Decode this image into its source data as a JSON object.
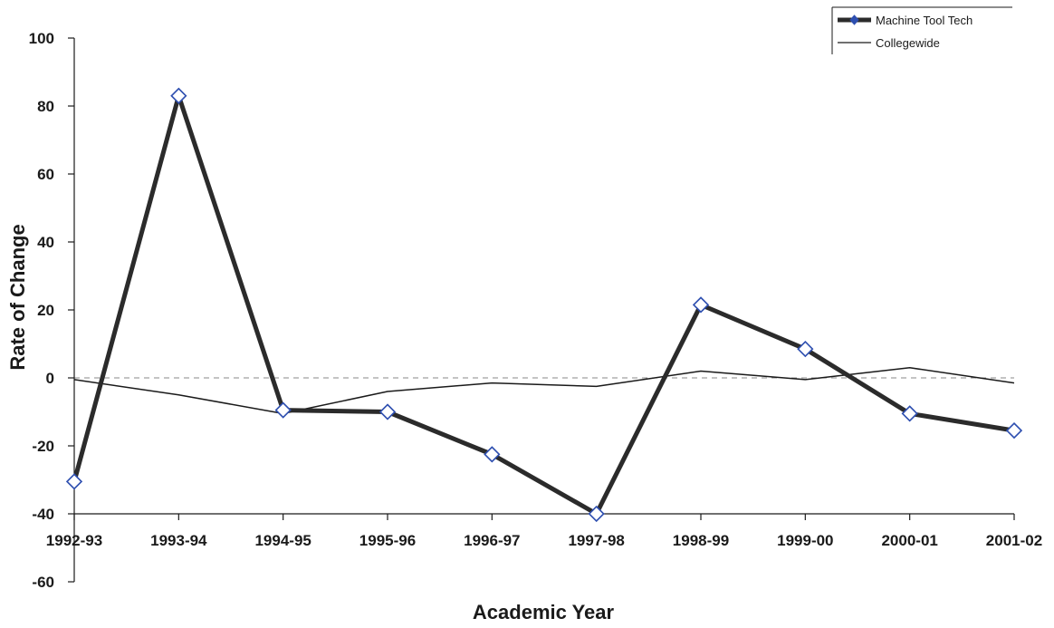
{
  "chart_data": {
    "type": "line",
    "title": "",
    "xlabel": "Academic Year",
    "ylabel": "Rate of Change",
    "categories": [
      "1992-93",
      "1993-94",
      "1994-95",
      "1995-96",
      "1996-97",
      "1997-98",
      "1998-99",
      "1999-00",
      "2000-01",
      "2001-02"
    ],
    "y_ticks": [
      100,
      80,
      60,
      40,
      20,
      0,
      -20,
      -40,
      -60
    ],
    "y_tick_labels": [
      "100",
      "80",
      "60",
      "40",
      "20",
      "0",
      "-20",
      "-40",
      "-60"
    ],
    "ylim": [
      -60,
      100
    ],
    "grid": false,
    "zero_reference_line": "dashed",
    "legend_position": "top-right",
    "series": [
      {
        "name": "Machine Tool Tech",
        "style": "thick line with diamond markers",
        "line_color": "#2b2b2b",
        "marker_color": "#2e4fb0",
        "values": [
          -30.5,
          83,
          -9.5,
          -10,
          -22.5,
          -40,
          21.5,
          8.5,
          -10.5,
          -15.5
        ]
      },
      {
        "name": "Collegewide",
        "style": "thin line",
        "line_color": "#1a1a1a",
        "values": [
          -0.5,
          -5,
          -10.5,
          -4,
          -1.5,
          -2.5,
          2,
          -0.5,
          3,
          -1.5
        ]
      }
    ]
  }
}
